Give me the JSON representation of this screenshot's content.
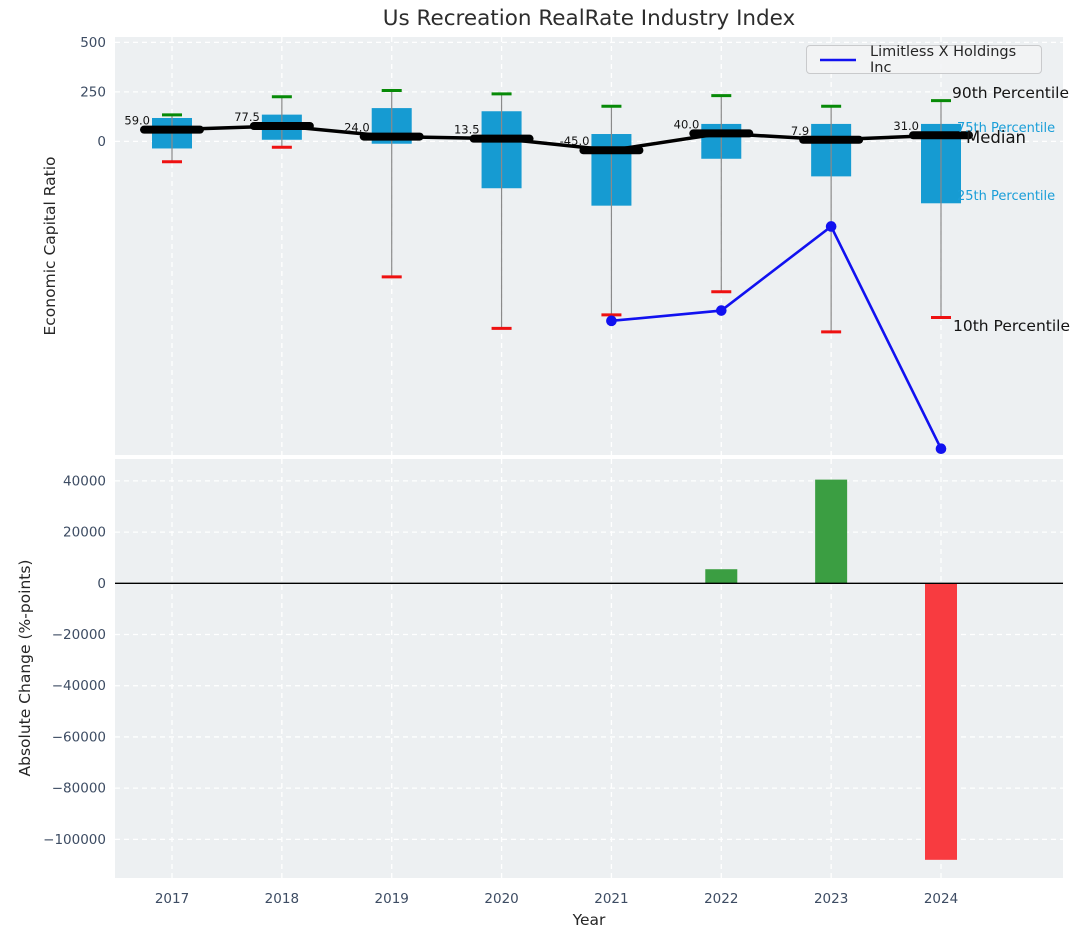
{
  "title": "Us Recreation RealRate Industry Index",
  "colors": {
    "panel_bg": "#edf0f2",
    "grid": "#ffffff",
    "box_fill": "#169bd2",
    "whisker": "#8a8a8a",
    "cap_high": "#078a07",
    "cap_low": "#ee1111",
    "median": "#000000",
    "company_line": "#1111f0",
    "bar_positive": "#3b9e42",
    "bar_negative": "#f83b40",
    "tick_text": "#3d4c63",
    "annotation_black": "#141414",
    "annotation_cyan": "#1a9ed8"
  },
  "chart_data": [
    {
      "type": "boxplot+line",
      "title": "Us Recreation RealRate Industry Index",
      "ylabel": "Economic Capital Ratio",
      "categories": [
        "2017",
        "2018",
        "2019",
        "2020",
        "2021",
        "2022",
        "2023",
        "2024"
      ],
      "yticks": [
        "500",
        "250",
        "0"
      ],
      "ytick_values": [
        500,
        250,
        0
      ],
      "ylim": [
        -1584.8,
        527.2
      ],
      "grid": true,
      "legend_position": "upper right",
      "boxes": [
        {
          "year": "2017",
          "p90": 134,
          "p75": 118,
          "median": 59.0,
          "p25": -36,
          "p10": -103,
          "median_label": "59.0"
        },
        {
          "year": "2018",
          "p90": 225,
          "p75": 135,
          "median": 77.5,
          "p25": 8,
          "p10": -30,
          "median_label": "77.5"
        },
        {
          "year": "2019",
          "p90": 257,
          "p75": 168,
          "median": 24.0,
          "p25": -12,
          "p10": -685,
          "median_label": "24.0"
        },
        {
          "year": "2020",
          "p90": 240,
          "p75": 152,
          "median": 13.5,
          "p25": -237,
          "p10": -945,
          "median_label": "13.5"
        },
        {
          "year": "2021",
          "p90": 177,
          "p75": 37,
          "median": -45.0,
          "p25": -325,
          "p10": -877,
          "median_label": "-45.0"
        },
        {
          "year": "2022",
          "p90": 231,
          "p75": 88,
          "median": 40.0,
          "p25": -88,
          "p10": -760,
          "median_label": "40.0"
        },
        {
          "year": "2023",
          "p90": 177,
          "p75": 88,
          "median": 7.9,
          "p25": -177,
          "p10": -963,
          "median_label": "7.9"
        },
        {
          "year": "2024",
          "p90": 206,
          "p75": 88,
          "median": 31.0,
          "p25": -313,
          "p10": -890,
          "median_label": "31.0"
        }
      ],
      "series": [
        {
          "name": "Limitless X Holdings Inc",
          "x": [
            "2021",
            "2022",
            "2023",
            "2024"
          ],
          "values": [
            -907,
            -855,
            -430,
            -1553
          ]
        }
      ],
      "percentile_labels": [
        "90th Percentile",
        "75th Percentile",
        "Median",
        "25th Percentile",
        "10th Percentile"
      ]
    },
    {
      "type": "bar",
      "ylabel": "Absolute Change (%-points)",
      "xlabel": "Year",
      "categories": [
        "2017",
        "2018",
        "2019",
        "2020",
        "2021",
        "2022",
        "2023",
        "2024"
      ],
      "values": [
        null,
        null,
        null,
        null,
        null,
        5500,
        40500,
        -108000
      ],
      "yticks": [
        "40000",
        "20000",
        "0",
        "−20000",
        "−40000",
        "−60000",
        "−80000",
        "−100000"
      ],
      "ytick_values": [
        40000,
        20000,
        0,
        -20000,
        -40000,
        -60000,
        -80000,
        -100000
      ],
      "ylim": [
        -115100,
        48550
      ],
      "grid": true,
      "zero_line": true
    }
  ]
}
